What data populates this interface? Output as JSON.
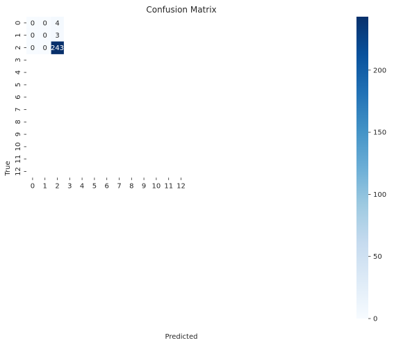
{
  "chart_data": {
    "type": "heatmap",
    "title": "Confusion Matrix",
    "xlabel": "Predicted",
    "ylabel": "True",
    "x_ticks": [
      "0",
      "1",
      "2",
      "3",
      "4",
      "5",
      "6",
      "7",
      "8",
      "9",
      "10",
      "11",
      "12"
    ],
    "y_ticks": [
      "0",
      "1",
      "2",
      "3",
      "4",
      "5",
      "6",
      "7",
      "8",
      "9",
      "10",
      "11",
      "12"
    ],
    "cells": [
      {
        "row": 0,
        "col": 0,
        "value": 0
      },
      {
        "row": 0,
        "col": 1,
        "value": 0
      },
      {
        "row": 0,
        "col": 2,
        "value": 4
      },
      {
        "row": 1,
        "col": 0,
        "value": 0
      },
      {
        "row": 1,
        "col": 1,
        "value": 0
      },
      {
        "row": 1,
        "col": 2,
        "value": 3
      },
      {
        "row": 2,
        "col": 0,
        "value": 0
      },
      {
        "row": 2,
        "col": 1,
        "value": 0
      },
      {
        "row": 2,
        "col": 2,
        "value": 243
      }
    ],
    "colorbar": {
      "colormap": "Blues",
      "min": 0,
      "max": 243,
      "ticks": [
        0,
        50,
        100,
        150,
        200
      ]
    }
  }
}
